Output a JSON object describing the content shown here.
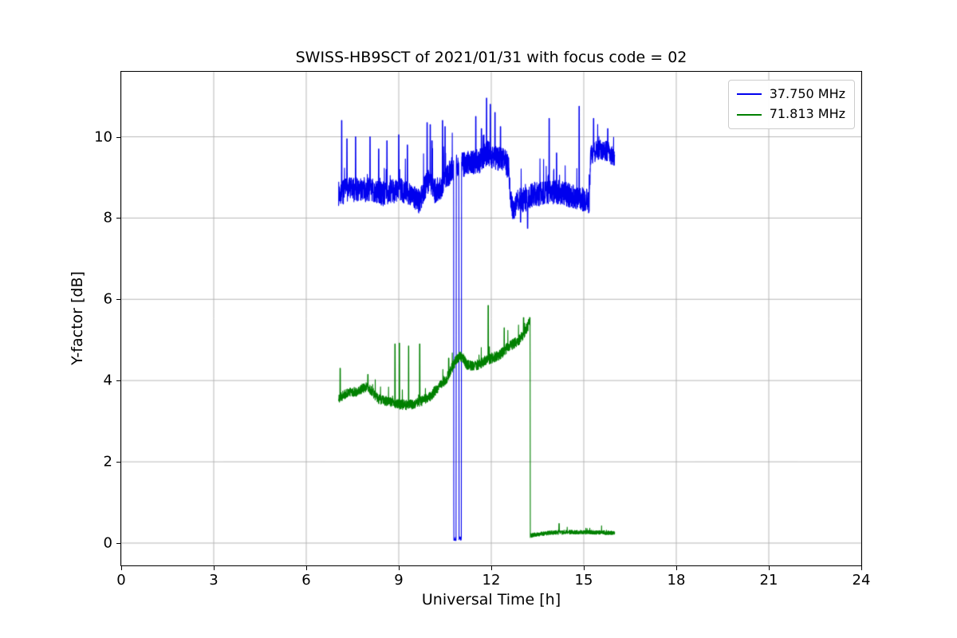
{
  "figure": {
    "background": "#ffffff",
    "axis_color": "#000000",
    "grid_color": "#b0b0b0"
  },
  "chart_data": {
    "type": "line",
    "title": "SWISS-HB9SCT of 2021/01/31 with focus code = 02",
    "xlabel": "Universal Time [h]",
    "ylabel": "Y-factor [dB]",
    "xlim": [
      0,
      24
    ],
    "ylim": [
      -0.55,
      11.6
    ],
    "xticks": [
      0,
      3,
      6,
      9,
      12,
      15,
      18,
      21,
      24
    ],
    "yticks": [
      0,
      2,
      4,
      6,
      8,
      10
    ],
    "grid": true,
    "legend_position": "upper-right",
    "series": [
      {
        "name": "37.750 MHz",
        "color": "#0000ee",
        "x_start": 7.05,
        "x_end": 16.0,
        "trend_keypoints": [
          [
            7.05,
            8.6
          ],
          [
            7.4,
            8.7
          ],
          [
            8.0,
            8.7
          ],
          [
            8.5,
            8.6
          ],
          [
            9.0,
            8.7
          ],
          [
            9.45,
            8.6
          ],
          [
            9.65,
            8.4
          ],
          [
            9.85,
            8.75
          ],
          [
            10.0,
            8.95
          ],
          [
            10.15,
            8.65
          ],
          [
            10.35,
            8.75
          ],
          [
            10.55,
            9.0
          ],
          [
            10.72,
            9.2
          ],
          [
            10.78,
            9.2
          ],
          [
            10.785,
            0.12
          ],
          [
            10.86,
            0.1
          ],
          [
            10.865,
            9.3
          ],
          [
            10.95,
            9.3
          ],
          [
            10.955,
            0.1
          ],
          [
            11.03,
            0.12
          ],
          [
            11.035,
            9.3
          ],
          [
            11.2,
            9.35
          ],
          [
            11.6,
            9.4
          ],
          [
            11.85,
            9.6
          ],
          [
            12.1,
            9.5
          ],
          [
            12.35,
            9.45
          ],
          [
            12.55,
            9.3
          ],
          [
            12.62,
            8.5
          ],
          [
            12.72,
            8.15
          ],
          [
            12.85,
            8.45
          ],
          [
            13.1,
            8.45
          ],
          [
            13.4,
            8.6
          ],
          [
            13.8,
            8.6
          ],
          [
            14.2,
            8.65
          ],
          [
            14.6,
            8.55
          ],
          [
            15.0,
            8.45
          ],
          [
            15.18,
            8.4
          ],
          [
            15.22,
            9.55
          ],
          [
            15.5,
            9.7
          ],
          [
            15.75,
            9.65
          ],
          [
            16.0,
            9.5
          ]
        ],
        "noise_amplitude_keypoints": [
          [
            7.05,
            0.3
          ],
          [
            10.78,
            0.3
          ],
          [
            10.785,
            0.05
          ],
          [
            10.86,
            0.05
          ],
          [
            10.865,
            0.3
          ],
          [
            10.95,
            0.3
          ],
          [
            10.955,
            0.05
          ],
          [
            11.03,
            0.05
          ],
          [
            11.035,
            0.3
          ],
          [
            12.6,
            0.32
          ],
          [
            12.75,
            0.25
          ],
          [
            13.0,
            0.3
          ],
          [
            15.18,
            0.3
          ],
          [
            15.22,
            0.25
          ],
          [
            16.0,
            0.25
          ]
        ],
        "peak_spikes": [
          [
            7.15,
            10.4
          ],
          [
            7.32,
            9.95
          ],
          [
            7.6,
            10.0
          ],
          [
            8.07,
            10.0
          ],
          [
            8.35,
            9.7
          ],
          [
            8.62,
            9.9
          ],
          [
            9.0,
            10.05
          ],
          [
            9.28,
            9.8
          ],
          [
            9.92,
            10.35
          ],
          [
            10.02,
            10.3
          ],
          [
            10.08,
            9.9
          ],
          [
            10.42,
            10.4
          ],
          [
            10.5,
            10.25
          ],
          [
            11.5,
            10.5
          ],
          [
            11.68,
            10.2
          ],
          [
            11.85,
            10.95
          ],
          [
            11.97,
            10.8
          ],
          [
            12.12,
            10.6
          ],
          [
            12.3,
            10.25
          ],
          [
            12.95,
            7.9
          ],
          [
            13.18,
            7.75
          ],
          [
            13.88,
            10.45
          ],
          [
            14.12,
            9.6
          ],
          [
            14.85,
            10.75
          ],
          [
            15.32,
            10.45
          ],
          [
            15.78,
            10.2
          ]
        ],
        "random_spike_probability": 0.03,
        "random_spike_max": 0.8,
        "seed": 7
      },
      {
        "name": "71.813 MHz",
        "color": "#008000",
        "x_start": 7.05,
        "x_end": 16.0,
        "trend_keypoints": [
          [
            7.05,
            3.55
          ],
          [
            7.3,
            3.7
          ],
          [
            7.6,
            3.72
          ],
          [
            7.95,
            3.85
          ],
          [
            8.1,
            3.75
          ],
          [
            8.35,
            3.55
          ],
          [
            8.6,
            3.5
          ],
          [
            8.9,
            3.42
          ],
          [
            9.2,
            3.4
          ],
          [
            9.5,
            3.42
          ],
          [
            9.75,
            3.5
          ],
          [
            10.0,
            3.6
          ],
          [
            10.3,
            3.85
          ],
          [
            10.55,
            4.05
          ],
          [
            10.75,
            4.35
          ],
          [
            10.9,
            4.55
          ],
          [
            11.05,
            4.6
          ],
          [
            11.2,
            4.4
          ],
          [
            11.45,
            4.35
          ],
          [
            11.7,
            4.45
          ],
          [
            12.0,
            4.55
          ],
          [
            12.3,
            4.65
          ],
          [
            12.6,
            4.85
          ],
          [
            12.9,
            5.0
          ],
          [
            13.1,
            5.2
          ],
          [
            13.22,
            5.4
          ],
          [
            13.26,
            5.5
          ],
          [
            13.265,
            0.18
          ],
          [
            13.5,
            0.22
          ],
          [
            14.0,
            0.26
          ],
          [
            14.6,
            0.27
          ],
          [
            15.2,
            0.27
          ],
          [
            16.0,
            0.25
          ]
        ],
        "noise_amplitude_keypoints": [
          [
            7.05,
            0.12
          ],
          [
            13.26,
            0.13
          ],
          [
            13.265,
            0.05
          ],
          [
            16.0,
            0.05
          ]
        ],
        "peak_spikes": [
          [
            7.1,
            4.3
          ],
          [
            8.0,
            4.15
          ],
          [
            8.88,
            4.9
          ],
          [
            9.02,
            4.92
          ],
          [
            9.32,
            4.85
          ],
          [
            9.68,
            4.9
          ],
          [
            10.62,
            4.55
          ],
          [
            11.9,
            5.85
          ],
          [
            12.42,
            5.3
          ],
          [
            13.05,
            5.55
          ],
          [
            14.2,
            0.48
          ]
        ],
        "random_spike_probability": 0.012,
        "random_spike_max": 0.4,
        "seed": 21
      }
    ]
  }
}
